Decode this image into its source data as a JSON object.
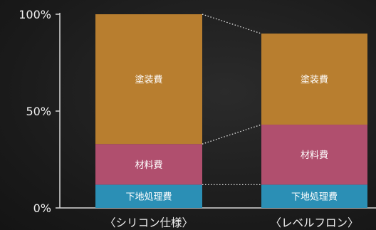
{
  "chart_data": {
    "type": "bar",
    "stacked": true,
    "normalized_percent": true,
    "categories": [
      "〈シリコン仕様〉",
      "〈レベルフロン〉"
    ],
    "series": [
      {
        "name": "下地処理費",
        "values": [
          12,
          12
        ],
        "color": "#2b8fb5",
        "text_color": "#ffffff"
      },
      {
        "name": "材料費",
        "values": [
          21,
          31
        ],
        "color": "#b04f6e",
        "text_color": "#ffffff"
      },
      {
        "name": "塗装費",
        "values": [
          67,
          47
        ],
        "color": "#b87e2f",
        "text_color": "#ffffff"
      }
    ],
    "y_ticks": [
      "0%",
      "50%",
      "100%"
    ],
    "ylim": [
      0,
      100
    ],
    "connector_style": "dotted",
    "grid": false,
    "legend": "none"
  }
}
